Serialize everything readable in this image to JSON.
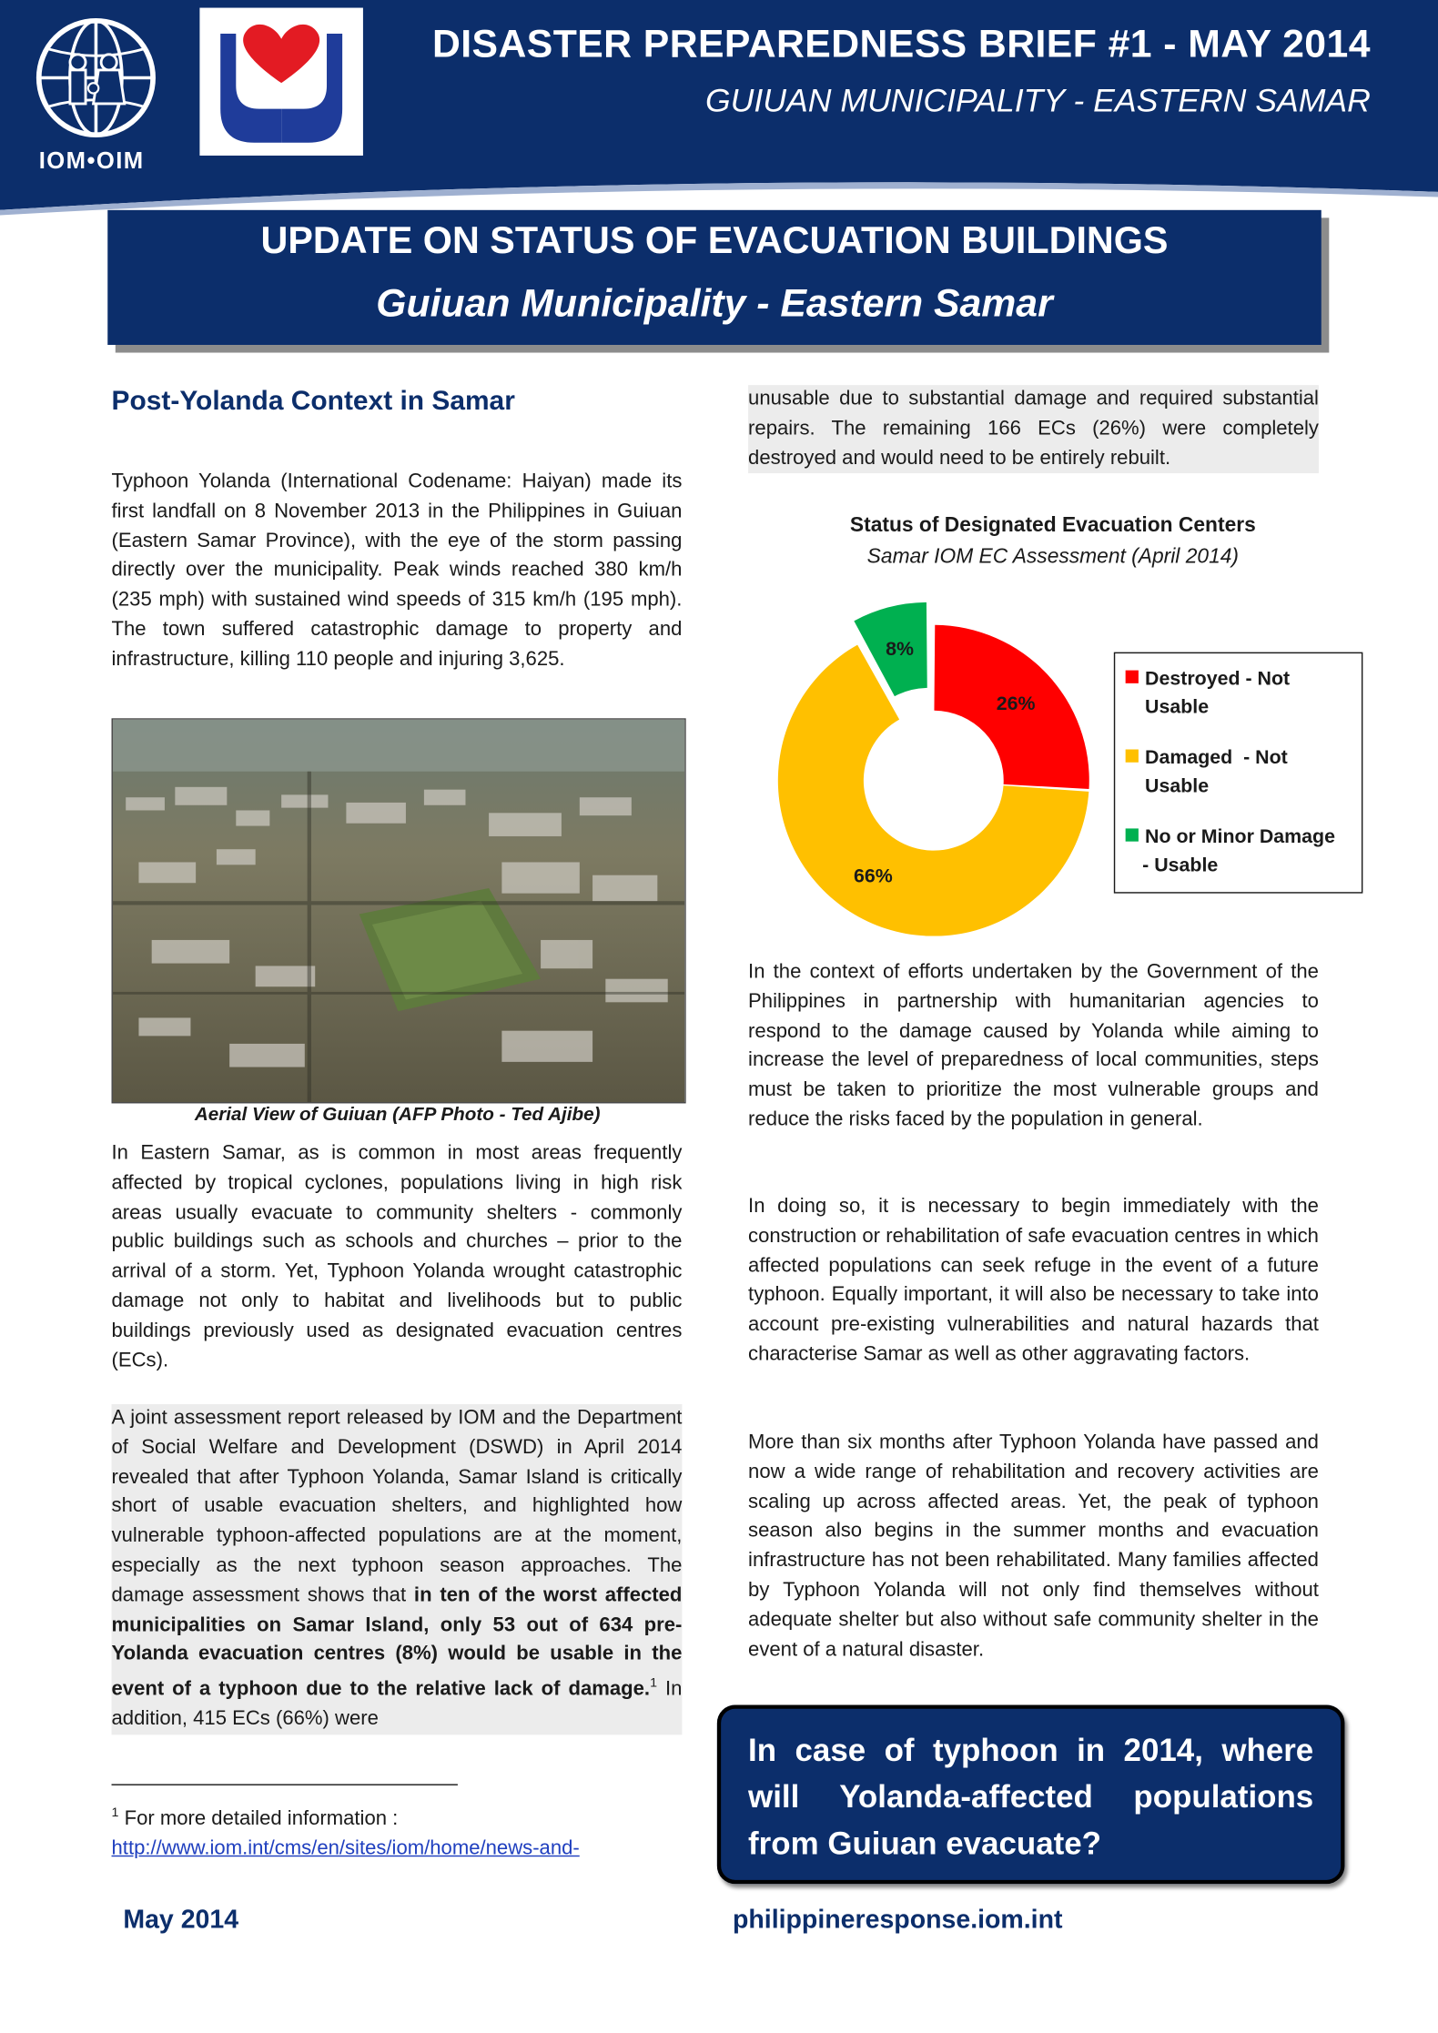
{
  "header": {
    "title": "DISASTER PREPAREDNESS BRIEF #1 - MAY 2014",
    "subtitle": "GUIUAN MUNICIPALITY - EASTERN SAMAR",
    "iom_logo_text": "IOM•OIM"
  },
  "banner": {
    "line1": "UPDATE ON STATUS OF EVACUATION BUILDINGS",
    "line2": "Guiuan Municipality - Eastern Samar"
  },
  "left_column": {
    "heading": "Post-Yolanda Context in Samar",
    "para1": "Typhoon Yolanda (International Codename: Haiyan) made its first landfall on 8 November 2013 in the Philippines in Guiuan (Eastern Samar Province), with the eye of the storm passing directly over the municipality. Peak winds reached 380 km/h (235 mph) with sustained wind speeds of 315 km/h (195 mph). The town suffered catastrophic damage to property and infrastructure, killing 110 people and injuring 3,625.",
    "photo_caption": "Aerial View of Guiuan (AFP Photo - Ted Ajibe)",
    "para2": "In Eastern Samar, as is common in most areas frequently affected by tropical cyclones, populations living in high risk areas usually evacuate to community shelters - commonly public buildings such as schools and churches – prior to the arrival of a storm. Yet, Typhoon Yolanda wrought catastrophic damage not only to habitat and livelihoods but to public buildings previously used as designated evacuation centres (ECs).",
    "para3_a": "A joint assessment report released by IOM and the Department of Social Welfare and Development (DSWD) in April 2014 revealed that after Typhoon Yolanda, Samar Island is critically short of usable evacuation shelters, and highlighted how vulnerable typhoon-affected populations are at the moment, especially as the next typhoon season approaches. The damage assessment shows that ",
    "para3_bold": "in ten of the worst affected municipalities on Samar Island, only 53 out of 634 pre-Yolanda evacuation centres (8%) would be usable in the event of a typhoon due to the relative lack of damage.",
    "para3_sup": "1",
    "para3_b": " In addition, 415 ECs (66%) were",
    "footnote_num": "1",
    "footnote_text": " For more detailed information :",
    "footnote_link": "http://www.iom.int/cms/en/sites/iom/home/news-and-"
  },
  "right_column": {
    "para_cont": "unusable due to substantial damage and required substantial repairs. The remaining 166 ECs (26%) were completely destroyed and would need to be entirely rebuilt.",
    "para4": "In the context of efforts undertaken by the Government of the Philippines in partnership with humanitarian agencies to respond to the damage caused by Yolanda while aiming to increase the level of preparedness of local communities, steps must be taken to prioritize the most vulnerable groups and reduce the risks faced by the population in general.",
    "para5": "In doing so, it is necessary to begin immediately with the construction or rehabilitation of safe evacuation centres in which affected populations can seek refuge in the event of a future typhoon. Equally important, it will also be necessary to take into account pre-existing vulnerabilities and natural hazards that characterise Samar as well as other aggravating factors.",
    "para6": "More than six months after Typhoon Yolanda have passed and now a wide range of rehabilitation and recovery activities are scaling up across affected areas. Yet, the peak of typhoon season also begins in the summer months and evacuation infrastructure has not been rehabilitated. Many families affected by Typhoon Yolanda will not only find themselves without adequate shelter but also without safe community shelter in the event of a natural disaster.",
    "callout": "In case of typhoon in 2014, where will Yolanda-affected populations from Guiuan evacuate?"
  },
  "chart_data": {
    "type": "pie",
    "title": "Status of Designated Evacuation Centers",
    "subtitle": "Samar IOM EC Assessment (April 2014)",
    "donut": true,
    "exploded_slice": "No or Minor Damage - Usable",
    "legend_placement": "right",
    "slices": [
      {
        "label": "Destroyed - Not Usable",
        "value": 26,
        "value_label": "26%",
        "color": "#ff0000"
      },
      {
        "label": "Damaged - Not Usable",
        "value": 66,
        "value_label": "66%",
        "color": "#ffc000"
      },
      {
        "label": "No or Minor Damage - Usable",
        "value": 8,
        "value_label": "8%",
        "color": "#00b050"
      }
    ],
    "legend": [
      {
        "line1": "Destroyed - Not",
        "line2": "Usable"
      },
      {
        "line1": "Damaged  - Not",
        "line2": "Usable"
      },
      {
        "line1": "No or Minor Damage",
        "line2": "- Usable"
      }
    ]
  },
  "footer": {
    "date": "May 2014",
    "website": "philippineresponse.iom.int"
  },
  "colors": {
    "brand_navy": "#0c2e6b",
    "destroyed_red": "#ff0000",
    "damaged_amber": "#ffc000",
    "usable_green": "#00b050",
    "paragraph_shade": "#ececec"
  }
}
